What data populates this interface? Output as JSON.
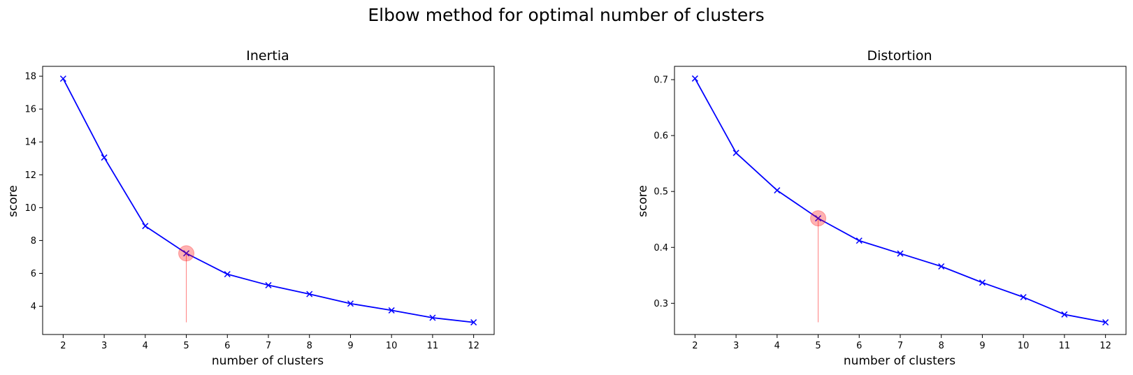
{
  "suptitle": "Elbow method for optimal number of clusters",
  "colors": {
    "line": "#0000ff",
    "marker": "#0000ff",
    "elbow": "#ff0000"
  },
  "chart_data": [
    {
      "type": "line",
      "title": "Inertia",
      "xlabel": "number of clusters",
      "ylabel": "score",
      "x": [
        2,
        3,
        4,
        5,
        6,
        7,
        8,
        9,
        10,
        11,
        12
      ],
      "series": [
        {
          "values": [
            17.85,
            13.05,
            8.88,
            7.22,
            5.95,
            5.28,
            4.74,
            4.16,
            3.75,
            3.3,
            3.02
          ]
        }
      ],
      "xticks": [
        2,
        3,
        4,
        5,
        6,
        7,
        8,
        9,
        10,
        11,
        12
      ],
      "yticks": [
        4,
        6,
        8,
        10,
        12,
        14,
        16,
        18
      ],
      "xlim": [
        1.5,
        12.5
      ],
      "ylim": [
        2.28,
        18.6
      ],
      "elbow": {
        "x": 5,
        "y": 7.22
      },
      "marker": "x",
      "grid": false
    },
    {
      "type": "line",
      "title": "Distortion",
      "xlabel": "number of clusters",
      "ylabel": "score",
      "x": [
        2,
        3,
        4,
        5,
        6,
        7,
        8,
        9,
        10,
        11,
        12
      ],
      "series": [
        {
          "values": [
            0.702,
            0.569,
            0.502,
            0.452,
            0.412,
            0.389,
            0.366,
            0.337,
            0.311,
            0.28,
            0.266
          ]
        }
      ],
      "xticks": [
        2,
        3,
        4,
        5,
        6,
        7,
        8,
        9,
        10,
        11,
        12
      ],
      "yticks": [
        0.3,
        0.4,
        0.5,
        0.6,
        0.7
      ],
      "xlim": [
        1.5,
        12.5
      ],
      "ylim": [
        0.2442,
        0.7238
      ],
      "elbow": {
        "x": 5,
        "y": 0.452
      },
      "marker": "x",
      "grid": false
    }
  ]
}
